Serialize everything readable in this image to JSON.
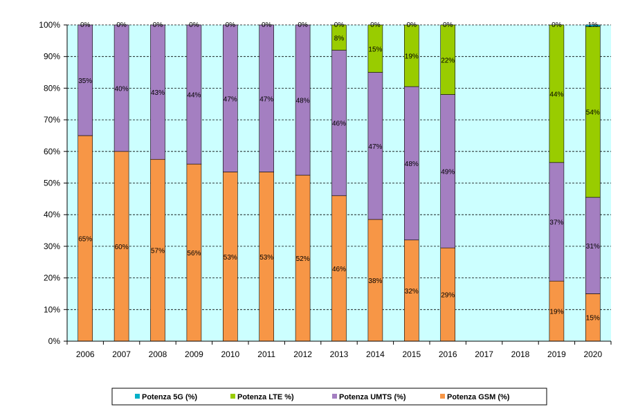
{
  "chart_data": {
    "type": "bar",
    "stacked": true,
    "percent": true,
    "categories": [
      "2006",
      "2007",
      "2008",
      "2009",
      "2010",
      "2011",
      "2012",
      "2013",
      "2014",
      "2015",
      "2016",
      "2017",
      "2018",
      "2019",
      "2020"
    ],
    "series": [
      {
        "name": "Potenza  GSM (%)",
        "color": "#f79646",
        "values": [
          65,
          60,
          57.5,
          56,
          53.5,
          53.5,
          52.5,
          46,
          38.5,
          32,
          29.5,
          null,
          null,
          19,
          15
        ],
        "labels": [
          "65%",
          "60%",
          "57%",
          "56%",
          "53%",
          "53%",
          "52%",
          "46%",
          "38%",
          "32%",
          "29%",
          "",
          "",
          "19%",
          "15%"
        ]
      },
      {
        "name": "Potenza UMTS (%)",
        "color": "#a47fc1",
        "values": [
          35,
          40,
          42.5,
          44,
          46.5,
          46.5,
          47.5,
          46,
          46.5,
          48.5,
          48.5,
          null,
          null,
          37.5,
          30.5
        ],
        "labels": [
          "35%",
          "40%",
          "43%",
          "44%",
          "47%",
          "47%",
          "48%",
          "46%",
          "47%",
          "48%",
          "49%",
          "",
          "",
          "37%",
          "31%"
        ]
      },
      {
        "name": "Potenza LTE %)",
        "color": "#99cc00",
        "values": [
          0,
          0,
          0,
          0,
          0,
          0,
          0,
          8,
          15,
          19.5,
          22,
          null,
          null,
          43.5,
          54
        ],
        "labels": [
          "",
          "",
          "",
          "",
          "",
          "",
          "",
          "8%",
          "15%",
          "19%",
          "22%",
          "",
          "",
          "44%",
          "54%"
        ]
      },
      {
        "name": "Potenza 5G (%)",
        "color": "#00b0c8",
        "values": [
          0,
          0,
          0,
          0,
          0,
          0,
          0,
          0,
          0,
          0,
          0,
          null,
          null,
          0,
          0.5
        ],
        "labels": [
          "0%",
          "0%",
          "0%",
          "0%",
          "0%",
          "0%",
          "0%",
          "0%",
          "0%",
          "0%",
          "0%",
          "",
          "",
          "0%",
          "1%"
        ]
      }
    ],
    "y_ticks": [
      "0%",
      "10%",
      "20%",
      "30%",
      "40%",
      "50%",
      "60%",
      "70%",
      "80%",
      "90%",
      "100%"
    ],
    "ylim": [
      0,
      100
    ],
    "grid": true,
    "plot_background": "#ccffff",
    "legend_position": "bottom",
    "legend_order": [
      "Potenza 5G (%)",
      "Potenza LTE %)",
      "Potenza UMTS (%)",
      "Potenza  GSM (%)"
    ]
  }
}
